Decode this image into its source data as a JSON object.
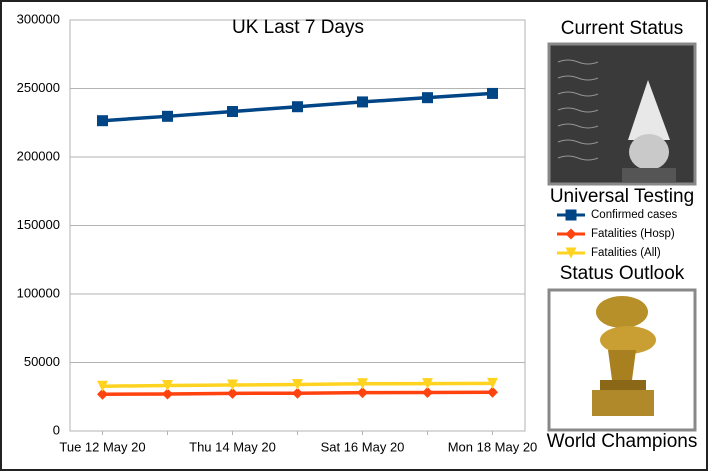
{
  "chart_data": {
    "type": "line",
    "title": "UK Last 7 Days",
    "categories": [
      "Tue 12 May 20",
      null,
      "Thu 14 May 20",
      null,
      "Sat 16 May 20",
      null,
      "Mon 18 May 20"
    ],
    "series": [
      {
        "name": "Confirmed cases",
        "color": "#004586",
        "marker": "square",
        "values": [
          226500,
          229700,
          233200,
          236700,
          240200,
          243300,
          246400
        ]
      },
      {
        "name": "Fatalities (Hosp)",
        "color": "#ff420e",
        "marker": "diamond",
        "values": [
          26800,
          27000,
          27500,
          27600,
          28000,
          28100,
          28300
        ]
      },
      {
        "name": "Fatalities (All)",
        "color": "#ffd320",
        "marker": "triangle-down",
        "values": [
          32700,
          33200,
          33600,
          33900,
          34500,
          34600,
          34800
        ]
      }
    ],
    "ylim": [
      0,
      300000
    ],
    "yticks": [
      0,
      50000,
      100000,
      150000,
      200000,
      250000,
      300000
    ],
    "grid": true
  },
  "panel": {
    "status_title": "Current Status",
    "status_caption": "Universal Testing",
    "outlook_title": "Status Outlook",
    "outlook_caption": "World Champions"
  }
}
